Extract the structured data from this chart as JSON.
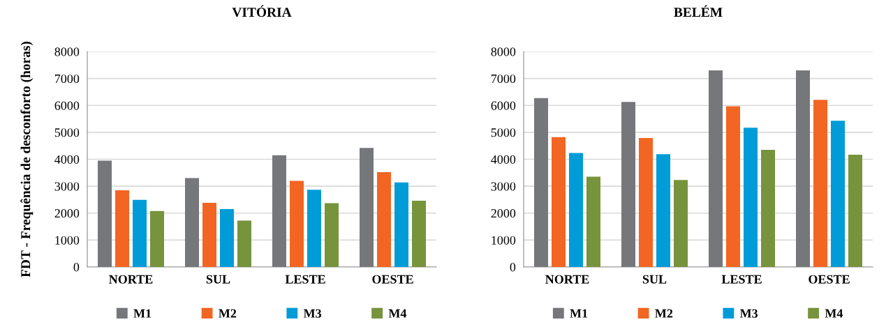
{
  "chart_data": [
    {
      "type": "bar",
      "title": "VITÓRIA",
      "ylabel": "FDT - Frequência de desconforto (horas)",
      "categories": [
        "NORTE",
        "SUL",
        "LESTE",
        "OESTE"
      ],
      "series": [
        {
          "name": "M1",
          "color": "#76777b",
          "values": [
            3950,
            3300,
            4150,
            4420
          ]
        },
        {
          "name": "M2",
          "color": "#f26522",
          "values": [
            2850,
            2380,
            3200,
            3520
          ]
        },
        {
          "name": "M3",
          "color": "#009cd8",
          "values": [
            2490,
            2150,
            2870,
            3140
          ]
        },
        {
          "name": "M4",
          "color": "#77933c",
          "values": [
            2080,
            1720,
            2370,
            2460
          ]
        }
      ],
      "ylim": [
        0,
        8000
      ],
      "yticks": [
        0,
        1000,
        2000,
        3000,
        4000,
        5000,
        6000,
        7000,
        8000
      ],
      "grid": "y",
      "legend": "bottom"
    },
    {
      "type": "bar",
      "title": "BELÉM",
      "categories": [
        "NORTE",
        "SUL",
        "LESTE",
        "OESTE"
      ],
      "series": [
        {
          "name": "M1",
          "color": "#76777b",
          "values": [
            6270,
            6130,
            7300,
            7300
          ]
        },
        {
          "name": "M2",
          "color": "#f26522",
          "values": [
            4820,
            4790,
            5970,
            6210
          ]
        },
        {
          "name": "M3",
          "color": "#009cd8",
          "values": [
            4230,
            4190,
            5170,
            5430
          ]
        },
        {
          "name": "M4",
          "color": "#77933c",
          "values": [
            3350,
            3230,
            4350,
            4170
          ]
        }
      ],
      "ylim": [
        0,
        8000
      ],
      "yticks": [
        0,
        1000,
        2000,
        3000,
        4000,
        5000,
        6000,
        7000,
        8000
      ],
      "grid": "y",
      "legend": "bottom"
    }
  ]
}
